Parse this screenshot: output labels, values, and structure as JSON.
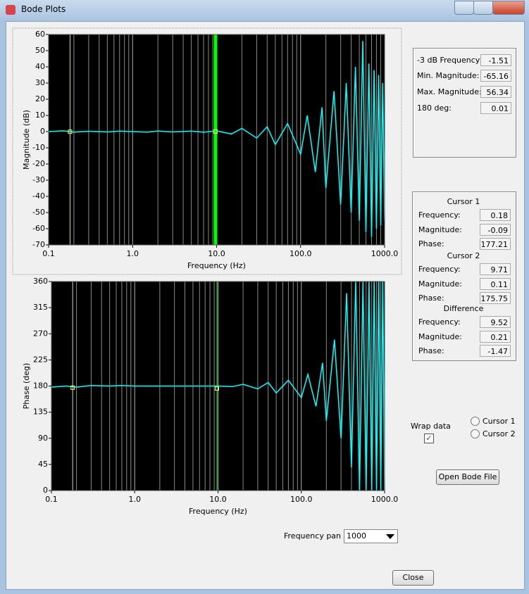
{
  "window": {
    "title": "Bode Plots"
  },
  "chart_data": [
    {
      "type": "line",
      "log_x": true,
      "xlabel": "Frequency (Hz)",
      "ylabel": "Magnitude (dB)",
      "x": [
        0.1,
        0.15,
        0.2,
        0.3,
        0.5,
        0.7,
        1,
        1.5,
        2,
        3,
        5,
        7,
        10,
        15,
        20,
        30,
        40,
        50,
        70,
        100,
        120,
        150,
        180,
        200,
        250,
        300,
        350,
        400,
        450,
        500,
        550,
        600,
        650,
        700,
        750,
        800,
        850,
        900,
        950,
        1000
      ],
      "series": [
        {
          "color": "#00ffff",
          "values": [
            0,
            0.5,
            -0.3,
            0.2,
            -0.2,
            0.3,
            0,
            -0.3,
            0.4,
            -0.2,
            0.3,
            -0.4,
            0.5,
            -1.5,
            2,
            -4,
            3,
            -8,
            5,
            -14,
            10,
            -25,
            15,
            -35,
            25,
            -45,
            30,
            -50,
            40,
            -55,
            56,
            -62,
            42,
            -65,
            38,
            -60,
            35,
            -58,
            30,
            -55
          ]
        }
      ],
      "xlim": [
        0.1,
        1000
      ],
      "ylim": [
        -70,
        60
      ],
      "xticks": [
        0.1,
        {
          "value": 1,
          "label": "1.0"
        },
        {
          "value": 10,
          "label": "10.0"
        },
        {
          "value": 100,
          "label": "100.0"
        },
        {
          "value": 1000,
          "label": "1000.0"
        }
      ],
      "yticks": [
        60,
        50,
        40,
        30,
        20,
        10,
        0,
        -10,
        -20,
        -30,
        -40,
        -50,
        -60,
        -70
      ]
    },
    {
      "type": "line",
      "log_x": true,
      "xlabel": "Frequency (Hz)",
      "ylabel": "Phase (deg)",
      "x": [
        0.1,
        0.15,
        0.2,
        0.3,
        0.5,
        0.7,
        1,
        1.5,
        2,
        3,
        5,
        7,
        10,
        15,
        20,
        30,
        40,
        50,
        70,
        100,
        120,
        150,
        180,
        200,
        250,
        300,
        350,
        400,
        450,
        500,
        550,
        600,
        650,
        700,
        750,
        800,
        850,
        900,
        950,
        1000
      ],
      "series": [
        {
          "color": "#00ffff",
          "values": [
            178,
            180,
            178,
            181,
            180,
            181,
            180,
            180,
            180,
            180,
            180,
            180,
            180,
            179,
            183,
            175,
            186,
            168,
            190,
            160,
            200,
            145,
            220,
            120,
            260,
            90,
            340,
            40,
            360,
            0,
            360,
            0,
            360,
            0,
            360,
            0,
            360,
            0,
            360,
            0
          ]
        }
      ],
      "xlim": [
        0.1,
        1000
      ],
      "ylim": [
        0,
        360
      ],
      "xticks": [
        0.1,
        {
          "value": 1,
          "label": "1.0"
        },
        {
          "value": 10,
          "label": "10.0"
        },
        {
          "value": 100,
          "label": "100.0"
        },
        {
          "value": 1000,
          "label": "1000.0"
        }
      ],
      "yticks": [
        360,
        315,
        270,
        225,
        180,
        135,
        90,
        45,
        0
      ]
    }
  ],
  "stats": {
    "rows": [
      {
        "label": "-3 dB Frequency:",
        "value": -1.51
      },
      {
        "label": "Min. Magnitude:",
        "value": -65.16
      },
      {
        "label": "Max. Magnitude:",
        "value": 56.34
      },
      {
        "label": "180 deg:",
        "value": 0.01
      }
    ]
  },
  "cursors": {
    "groups": [
      {
        "title": "Cursor 1",
        "rows": [
          {
            "label": "Frequency:",
            "value": 0.18
          },
          {
            "label": "Magnitude:",
            "value": -0.09
          },
          {
            "label": "Phase:",
            "value": 177.21
          }
        ]
      },
      {
        "title": "Cursor 2",
        "rows": [
          {
            "label": "Frequency:",
            "value": 9.71
          },
          {
            "label": "Magnitude:",
            "value": 0.11
          },
          {
            "label": "Phase:",
            "value": 175.75
          }
        ]
      },
      {
        "title": "Difference",
        "rows": [
          {
            "label": "Frequency:",
            "value": 9.52
          },
          {
            "label": "Magnitude:",
            "value": 0.21
          },
          {
            "label": "Phase:",
            "value": -1.47
          }
        ]
      }
    ]
  },
  "controls": {
    "wrap_label": "Wrap data",
    "wrap_checked": true,
    "radios": [
      "Cursor 1",
      "Cursor 2"
    ],
    "open_button": "Open Bode File",
    "pan_label": "Frequency pan",
    "pan_value": "1000",
    "close_button": "Close"
  }
}
